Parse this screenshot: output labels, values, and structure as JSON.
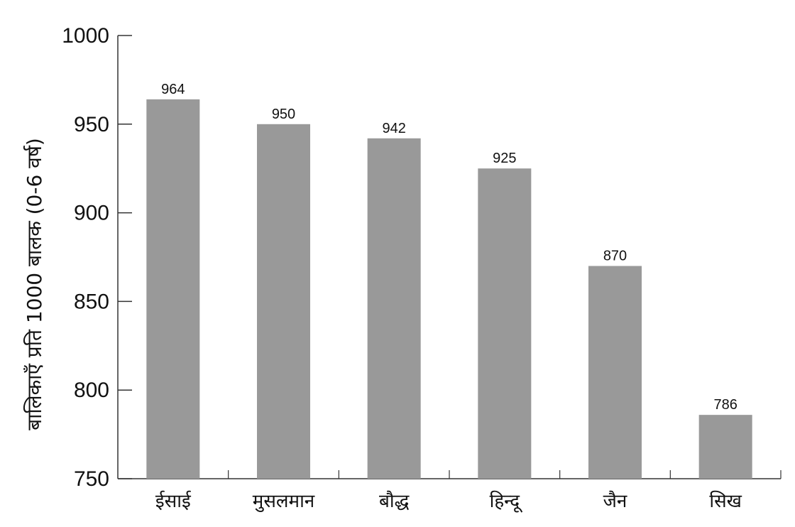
{
  "chart_data": {
    "type": "bar",
    "categories": [
      "ईसाई",
      "मुसलमान",
      "बौद्ध",
      "हिन्दू",
      "जैन",
      "सिख"
    ],
    "values": [
      964,
      950,
      942,
      925,
      870,
      786
    ],
    "ylabel": "बालिकाएँ प्रति 1000 बालक (0-6 वर्ष)",
    "xlabel": "",
    "title": "",
    "ylim": [
      750,
      1000
    ],
    "yticks": [
      750,
      800,
      850,
      900,
      950,
      1000
    ],
    "data_labels": [
      "964",
      "950",
      "942",
      "925",
      "870",
      "786"
    ],
    "grid": false,
    "legend": "none",
    "bar_color": "#999999",
    "axis_color": "#333333"
  }
}
